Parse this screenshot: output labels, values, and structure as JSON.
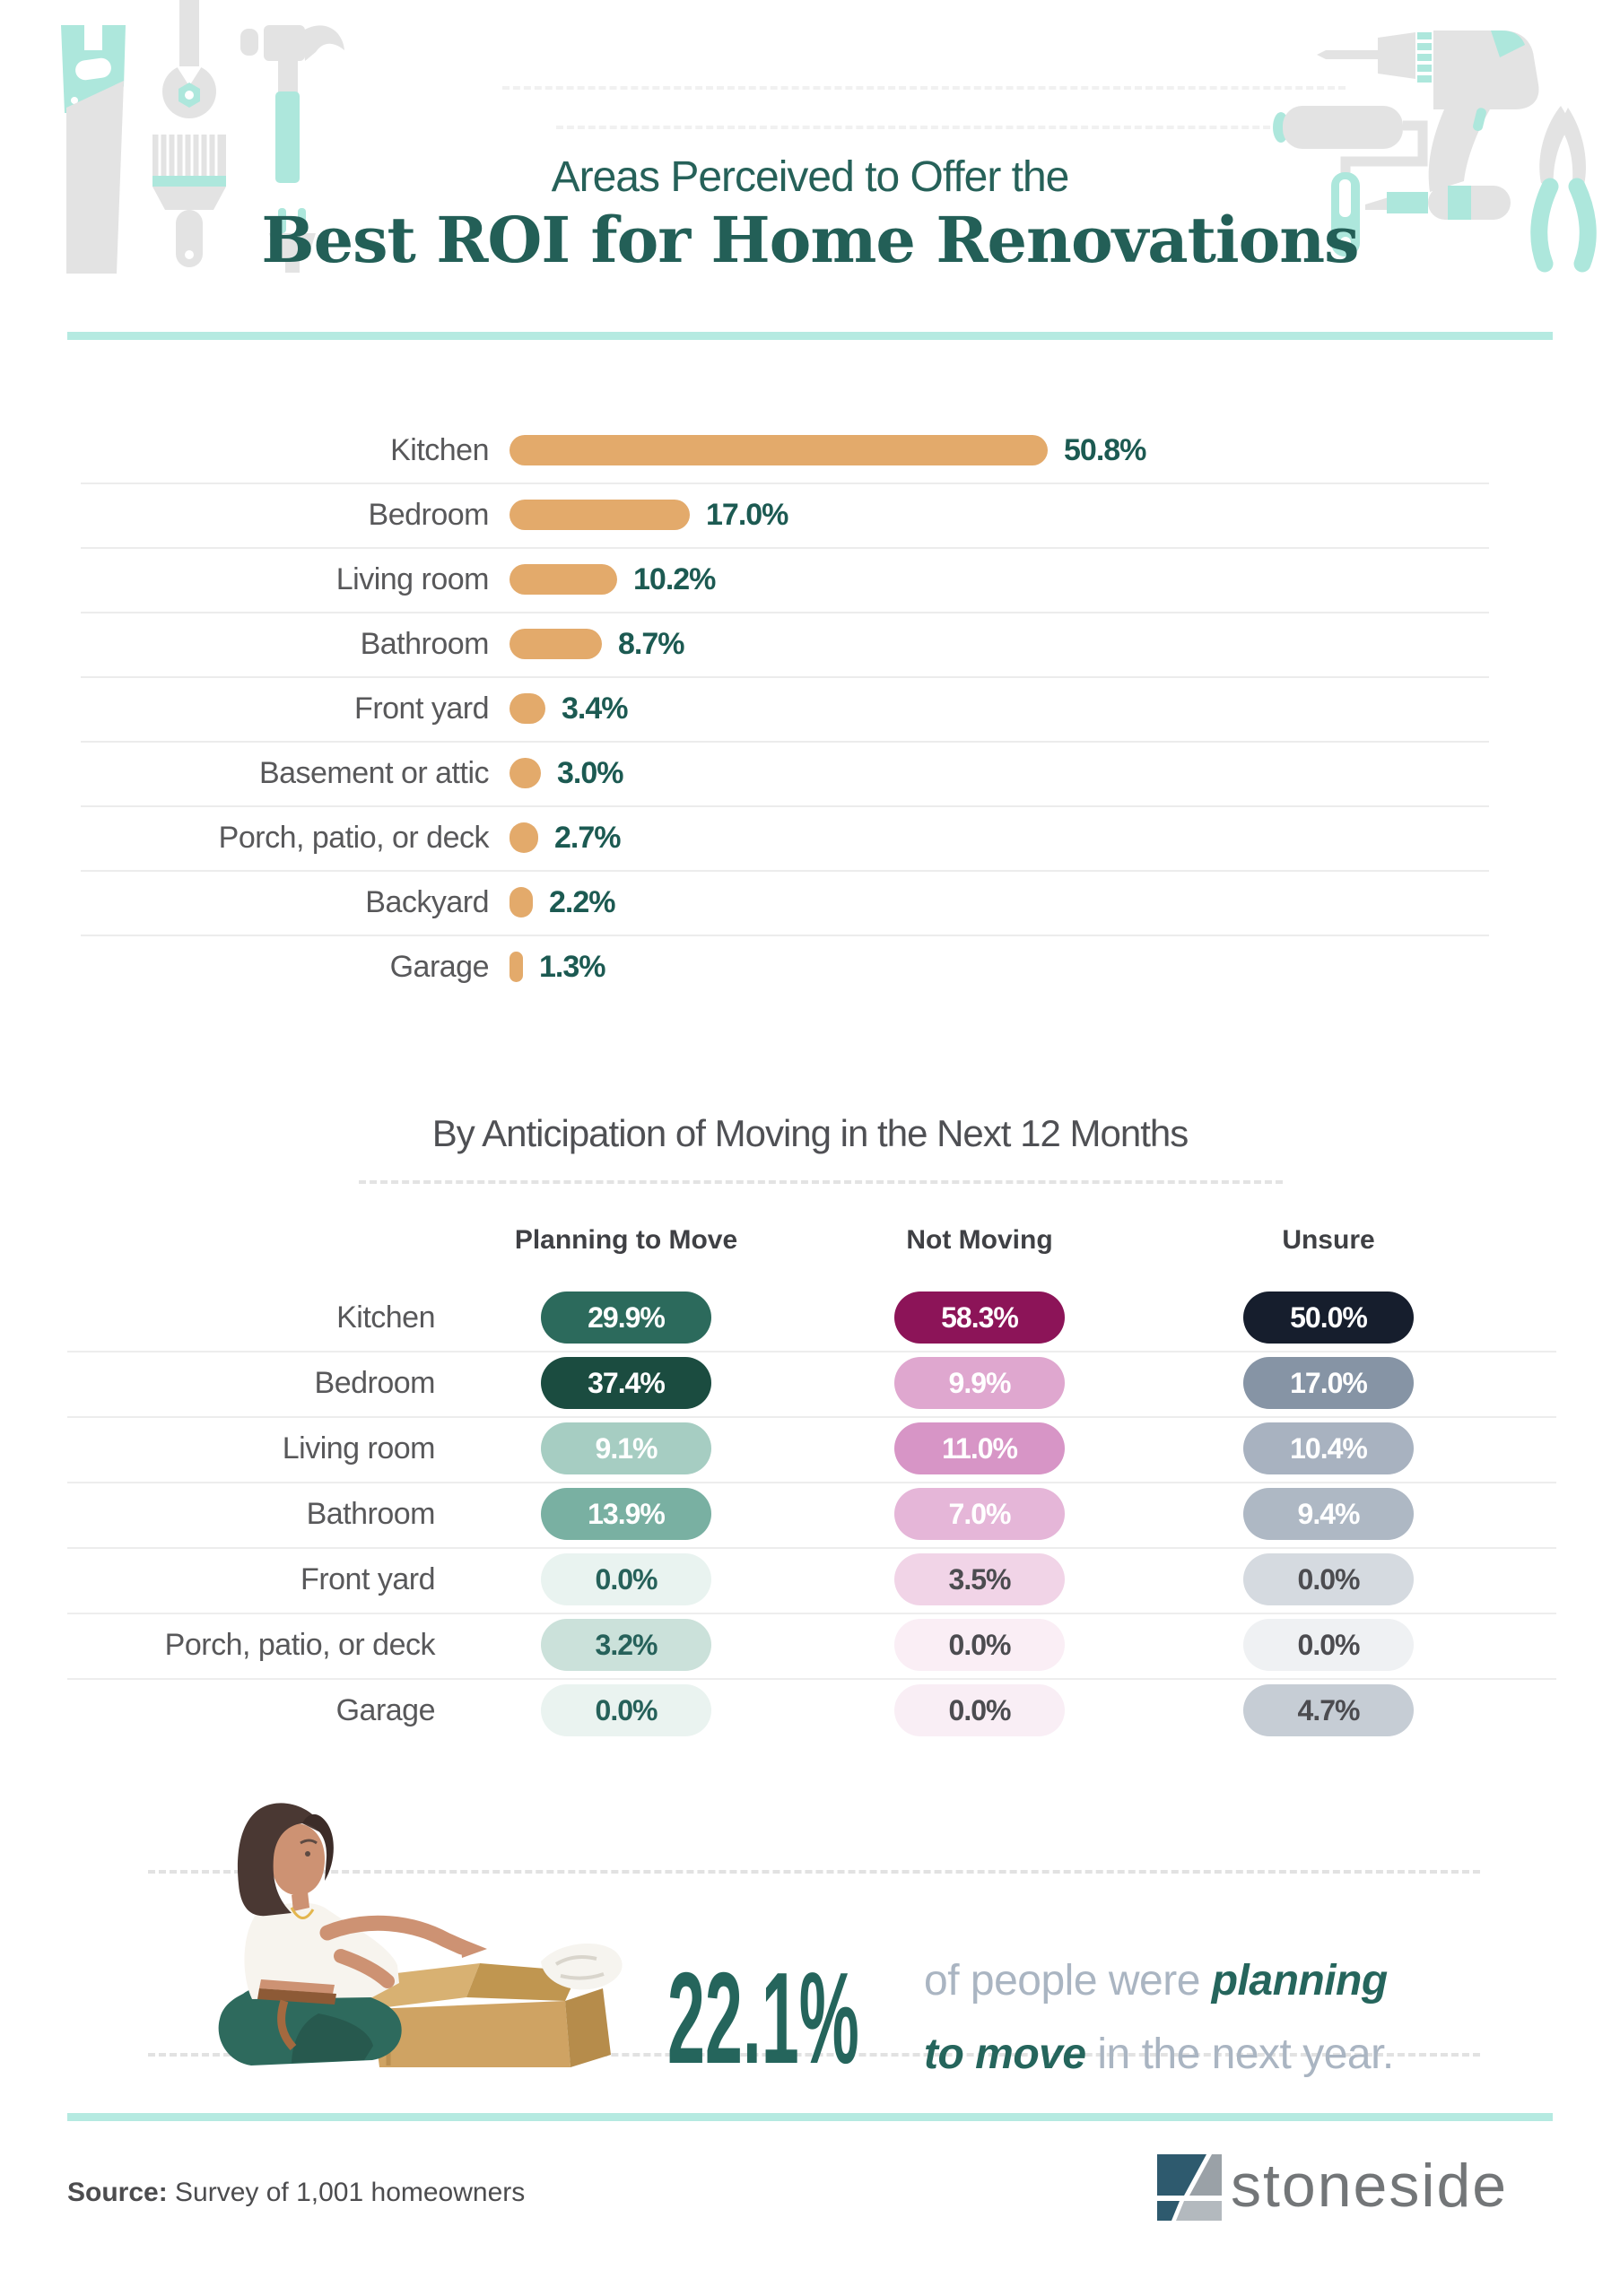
{
  "header": {
    "title_line1": "Areas Perceived to Offer the",
    "title_line2": "Best ROI for Home Renovations"
  },
  "chart_data": [
    {
      "type": "bar",
      "title": "Areas Perceived to Offer the Best ROI for Home Renovations",
      "orientation": "horizontal",
      "categories": [
        "Kitchen",
        "Bedroom",
        "Living room",
        "Bathroom",
        "Front yard",
        "Basement or attic",
        "Porch, patio, or deck",
        "Backyard",
        "Garage"
      ],
      "values": [
        50.8,
        17.0,
        10.2,
        8.7,
        3.4,
        3.0,
        2.7,
        2.2,
        1.3
      ],
      "value_labels": [
        "50.8%",
        "17.0%",
        "10.2%",
        "8.7%",
        "3.4%",
        "3.0%",
        "2.7%",
        "2.2%",
        "1.3%"
      ],
      "xlim": [
        0,
        50.8
      ],
      "grid": false,
      "bar_color": "#e3aa6b",
      "value_color": "#1c5a52",
      "label_color": "#58585a"
    },
    {
      "type": "table",
      "title": "By Anticipation of Moving in the Next 12 Months",
      "columns": [
        "Planning to Move",
        "Not Moving",
        "Unsure"
      ],
      "rows": [
        {
          "label": "Kitchen",
          "values": [
            "29.9%",
            "58.3%",
            "50.0%"
          ]
        },
        {
          "label": "Bedroom",
          "values": [
            "37.4%",
            "9.9%",
            "17.0%"
          ]
        },
        {
          "label": "Living room",
          "values": [
            "9.1%",
            "11.0%",
            "10.4%"
          ]
        },
        {
          "label": "Bathroom",
          "values": [
            "13.9%",
            "7.0%",
            "9.4%"
          ]
        },
        {
          "label": "Front yard",
          "values": [
            "0.0%",
            "3.5%",
            "0.0%"
          ]
        },
        {
          "label": "Porch, patio, or deck",
          "values": [
            "3.2%",
            "0.0%",
            "0.0%"
          ]
        },
        {
          "label": "Garage",
          "values": [
            "0.0%",
            "0.0%",
            "4.7%"
          ]
        }
      ],
      "cell_colors": [
        {
          "bg": [
            "#2c6a5c",
            "#8c1458",
            "#161e2d"
          ],
          "fg": [
            "#ffffff",
            "#ffffff",
            "#ffffff"
          ]
        },
        {
          "bg": [
            "#1b4c40",
            "#dfa7cf",
            "#8694a5"
          ],
          "fg": [
            "#ffffff",
            "#ffffff",
            "#ffffff"
          ]
        },
        {
          "bg": [
            "#a6cdc2",
            "#d795c6",
            "#a8b2c0"
          ],
          "fg": [
            "#ffffff",
            "#ffffff",
            "#ffffff"
          ]
        },
        {
          "bg": [
            "#79b0a2",
            "#e5b6d8",
            "#aeb8c4"
          ],
          "fg": [
            "#ffffff",
            "#ffffff",
            "#ffffff"
          ]
        },
        {
          "bg": [
            "#e9f3f0",
            "#f1d4e7",
            "#d5dae0"
          ],
          "fg": [
            "#26615a",
            "#4c4c50",
            "#4c4c50"
          ]
        },
        {
          "bg": [
            "#cbe1da",
            "#faeef5",
            "#eff1f3"
          ],
          "fg": [
            "#26615a",
            "#4c4c50",
            "#4c4c50"
          ]
        },
        {
          "bg": [
            "#eaf3f0",
            "#f9eef5",
            "#c6cdd5"
          ],
          "fg": [
            "#26615a",
            "#4c4c50",
            "#4c4c50"
          ]
        }
      ]
    }
  ],
  "stat": {
    "value": "22.1%",
    "line1_normal": "of people were ",
    "line1_bold": "planning to",
    "line2_bold": "move",
    "line2_normal": " in the next year."
  },
  "footer": {
    "source_label": "Source:",
    "source_text": " Survey of 1,001 homeowners",
    "brand": "stoneside"
  },
  "colors": {
    "accent_teal": "#266159",
    "mint": "#ade7dc",
    "divider_teal": "#b5eae1",
    "bar_tan": "#e3aa6b",
    "label_gray": "#58585a",
    "stat_muted": "#aab5c2",
    "logo_dark": "#2e5a6e",
    "logo_gray": "#9aa1a7"
  },
  "decor": {
    "left_tools": [
      "saw-icon",
      "wrench-icon",
      "paint-brush-icon",
      "hammer-icon",
      "plug-icon"
    ],
    "right_tools": [
      "drill-icon",
      "paint-roller-icon",
      "screwdriver-icon",
      "pliers-icon"
    ],
    "illustration": "woman-unpacking-moving-box"
  }
}
